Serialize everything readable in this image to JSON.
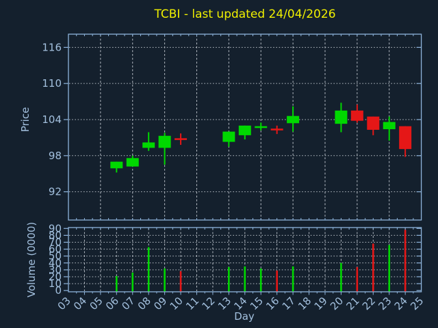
{
  "title": "TCBI - last updated 24/04/2026",
  "colors": {
    "background": "#14202d",
    "frame": "#8eb4dc",
    "tick_label": "#a3c0de",
    "axis_title": "#a3c0de",
    "title": "#f0f000",
    "grid": "#b5bcc4",
    "up": "#00d800",
    "down": "#e51717"
  },
  "chart_data": {
    "type": "candlestick",
    "title": "TCBI - last updated 24/04/2026",
    "xlabel": "Day",
    "x_range": [
      3,
      25
    ],
    "x_tick_labels": [
      "03",
      "04",
      "05",
      "06",
      "07",
      "08",
      "09",
      "10",
      "11",
      "12",
      "13",
      "14",
      "15",
      "16",
      "17",
      "18",
      "19",
      "20",
      "21",
      "22",
      "23",
      "24",
      "25"
    ],
    "up_color": "#00d800",
    "down_color": "#e51717",
    "legend": "none",
    "grid": "on",
    "panels": [
      {
        "name": "price",
        "ylabel": "Price",
        "y_ticks": [
          92,
          98,
          104,
          110,
          116
        ],
        "ylim": [
          87.3,
          118.2
        ],
        "x_gridlines": [
          5,
          7,
          9,
          11,
          13,
          15,
          17,
          19,
          21,
          23
        ]
      },
      {
        "name": "volume",
        "ylabel": "Volume (0000)",
        "y_ticks": [
          0,
          10,
          20,
          30,
          40,
          50,
          60,
          70,
          80,
          90
        ],
        "ylim": [
          -1.8,
          91.3
        ],
        "x_gridlines": [
          4,
          5,
          6,
          7,
          8,
          9,
          10,
          11,
          12,
          13,
          14,
          15,
          16,
          17,
          18,
          19,
          20,
          21,
          22,
          23,
          24
        ]
      }
    ],
    "series": [
      {
        "day": 6,
        "label": "06",
        "open": 95.9,
        "high": 97.0,
        "low": 95.2,
        "close": 97.0,
        "volume": 21
      },
      {
        "day": 7,
        "label": "07",
        "open": 96.2,
        "high": 98.0,
        "low": 96.2,
        "close": 97.6,
        "volume": 26
      },
      {
        "day": 8,
        "label": "08",
        "open": 99.3,
        "high": 101.9,
        "low": 98.8,
        "close": 100.2,
        "volume": 63
      },
      {
        "day": 9,
        "label": "09",
        "open": 99.3,
        "high": 101.8,
        "low": 96.5,
        "close": 101.3,
        "volume": 32
      },
      {
        "day": 10,
        "label": "10",
        "open": 100.9,
        "high": 101.7,
        "low": 99.8,
        "close": 100.8,
        "volume": 28
      },
      {
        "day": 13,
        "label": "13",
        "open": 100.3,
        "high": 102.0,
        "low": 99.5,
        "close": 102.0,
        "volume": 34
      },
      {
        "day": 14,
        "label": "14",
        "open": 101.4,
        "high": 103.0,
        "low": 100.7,
        "close": 103.0,
        "volume": 35
      },
      {
        "day": 15,
        "label": "15",
        "open": 102.8,
        "high": 103.5,
        "low": 102.2,
        "close": 102.9,
        "volume": 32
      },
      {
        "day": 16,
        "label": "16",
        "open": 102.5,
        "high": 103.0,
        "low": 101.6,
        "close": 102.4,
        "volume": 29
      },
      {
        "day": 17,
        "label": "17",
        "open": 103.4,
        "high": 106.2,
        "low": 102.0,
        "close": 104.6,
        "volume": 35
      },
      {
        "day": 20,
        "label": "20",
        "open": 103.3,
        "high": 106.8,
        "low": 101.9,
        "close": 105.5,
        "volume": 40
      },
      {
        "day": 21,
        "label": "21",
        "open": 105.5,
        "high": 106.5,
        "low": 103.5,
        "close": 103.8,
        "volume": 34
      },
      {
        "day": 22,
        "label": "22",
        "open": 104.5,
        "high": 104.5,
        "low": 101.4,
        "close": 102.3,
        "volume": 68
      },
      {
        "day": 23,
        "label": "23",
        "open": 102.4,
        "high": 104.5,
        "low": 100.5,
        "close": 103.6,
        "volume": 66
      },
      {
        "day": 24,
        "label": "24",
        "open": 102.9,
        "high": 102.9,
        "low": 97.8,
        "close": 99.1,
        "volume": 88
      }
    ]
  }
}
